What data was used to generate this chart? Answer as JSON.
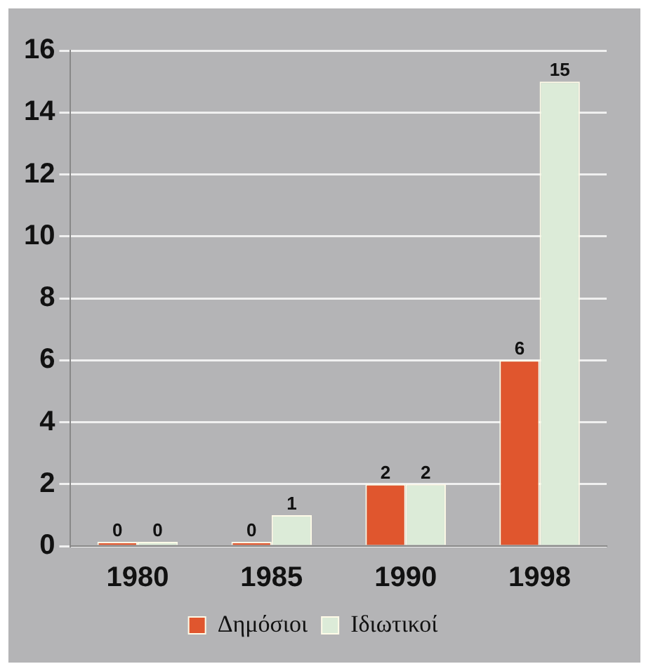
{
  "chart_data": {
    "type": "bar",
    "categories": [
      "1980",
      "1985",
      "1990",
      "1998"
    ],
    "series": [
      {
        "name": "Δημόσιοι",
        "color": "#e0562e",
        "values": [
          0,
          0,
          2,
          6
        ]
      },
      {
        "name": "Ιδιωτικοί",
        "color": "#dcebd8",
        "values": [
          0,
          1,
          2,
          15
        ]
      }
    ],
    "ylim": [
      0,
      16
    ],
    "yticks": [
      0,
      2,
      4,
      6,
      8,
      10,
      12,
      14,
      16
    ],
    "grid": "y",
    "legend": "bottom",
    "data_labels": true
  }
}
